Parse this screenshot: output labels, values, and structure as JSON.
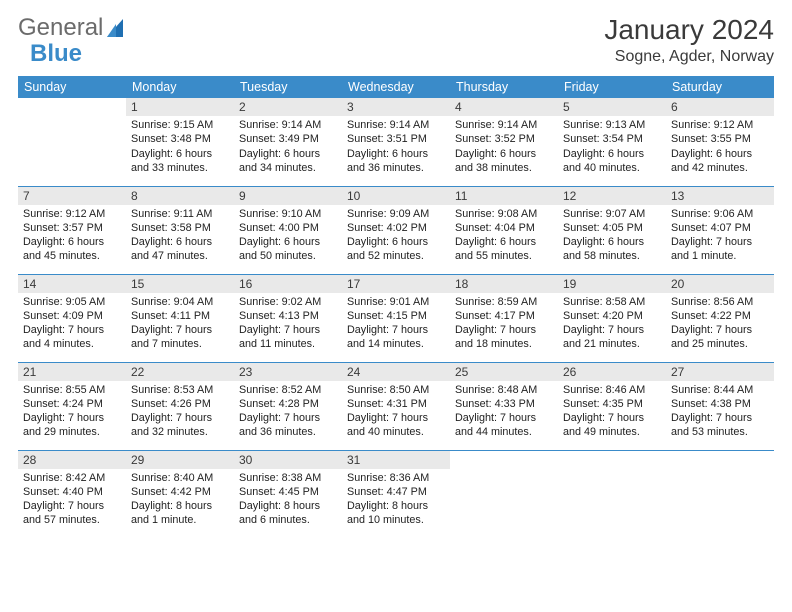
{
  "logo": {
    "word1": "General",
    "word2": "Blue"
  },
  "title": "January 2024",
  "location": "Sogne, Agder, Norway",
  "colors": {
    "accent": "#3a8bc9",
    "header_bg": "#3a8bc9",
    "header_fg": "#ffffff",
    "daynum_bg": "#e9e9e9",
    "rule": "#3a8bc9",
    "text": "#222222"
  },
  "columns": [
    "Sunday",
    "Monday",
    "Tuesday",
    "Wednesday",
    "Thursday",
    "Friday",
    "Saturday"
  ],
  "weeks": [
    [
      {
        "n": "",
        "sr": "",
        "ss": "",
        "dl": ""
      },
      {
        "n": "1",
        "sr": "Sunrise: 9:15 AM",
        "ss": "Sunset: 3:48 PM",
        "dl": "Daylight: 6 hours and 33 minutes."
      },
      {
        "n": "2",
        "sr": "Sunrise: 9:14 AM",
        "ss": "Sunset: 3:49 PM",
        "dl": "Daylight: 6 hours and 34 minutes."
      },
      {
        "n": "3",
        "sr": "Sunrise: 9:14 AM",
        "ss": "Sunset: 3:51 PM",
        "dl": "Daylight: 6 hours and 36 minutes."
      },
      {
        "n": "4",
        "sr": "Sunrise: 9:14 AM",
        "ss": "Sunset: 3:52 PM",
        "dl": "Daylight: 6 hours and 38 minutes."
      },
      {
        "n": "5",
        "sr": "Sunrise: 9:13 AM",
        "ss": "Sunset: 3:54 PM",
        "dl": "Daylight: 6 hours and 40 minutes."
      },
      {
        "n": "6",
        "sr": "Sunrise: 9:12 AM",
        "ss": "Sunset: 3:55 PM",
        "dl": "Daylight: 6 hours and 42 minutes."
      }
    ],
    [
      {
        "n": "7",
        "sr": "Sunrise: 9:12 AM",
        "ss": "Sunset: 3:57 PM",
        "dl": "Daylight: 6 hours and 45 minutes."
      },
      {
        "n": "8",
        "sr": "Sunrise: 9:11 AM",
        "ss": "Sunset: 3:58 PM",
        "dl": "Daylight: 6 hours and 47 minutes."
      },
      {
        "n": "9",
        "sr": "Sunrise: 9:10 AM",
        "ss": "Sunset: 4:00 PM",
        "dl": "Daylight: 6 hours and 50 minutes."
      },
      {
        "n": "10",
        "sr": "Sunrise: 9:09 AM",
        "ss": "Sunset: 4:02 PM",
        "dl": "Daylight: 6 hours and 52 minutes."
      },
      {
        "n": "11",
        "sr": "Sunrise: 9:08 AM",
        "ss": "Sunset: 4:04 PM",
        "dl": "Daylight: 6 hours and 55 minutes."
      },
      {
        "n": "12",
        "sr": "Sunrise: 9:07 AM",
        "ss": "Sunset: 4:05 PM",
        "dl": "Daylight: 6 hours and 58 minutes."
      },
      {
        "n": "13",
        "sr": "Sunrise: 9:06 AM",
        "ss": "Sunset: 4:07 PM",
        "dl": "Daylight: 7 hours and 1 minute."
      }
    ],
    [
      {
        "n": "14",
        "sr": "Sunrise: 9:05 AM",
        "ss": "Sunset: 4:09 PM",
        "dl": "Daylight: 7 hours and 4 minutes."
      },
      {
        "n": "15",
        "sr": "Sunrise: 9:04 AM",
        "ss": "Sunset: 4:11 PM",
        "dl": "Daylight: 7 hours and 7 minutes."
      },
      {
        "n": "16",
        "sr": "Sunrise: 9:02 AM",
        "ss": "Sunset: 4:13 PM",
        "dl": "Daylight: 7 hours and 11 minutes."
      },
      {
        "n": "17",
        "sr": "Sunrise: 9:01 AM",
        "ss": "Sunset: 4:15 PM",
        "dl": "Daylight: 7 hours and 14 minutes."
      },
      {
        "n": "18",
        "sr": "Sunrise: 8:59 AM",
        "ss": "Sunset: 4:17 PM",
        "dl": "Daylight: 7 hours and 18 minutes."
      },
      {
        "n": "19",
        "sr": "Sunrise: 8:58 AM",
        "ss": "Sunset: 4:20 PM",
        "dl": "Daylight: 7 hours and 21 minutes."
      },
      {
        "n": "20",
        "sr": "Sunrise: 8:56 AM",
        "ss": "Sunset: 4:22 PM",
        "dl": "Daylight: 7 hours and 25 minutes."
      }
    ],
    [
      {
        "n": "21",
        "sr": "Sunrise: 8:55 AM",
        "ss": "Sunset: 4:24 PM",
        "dl": "Daylight: 7 hours and 29 minutes."
      },
      {
        "n": "22",
        "sr": "Sunrise: 8:53 AM",
        "ss": "Sunset: 4:26 PM",
        "dl": "Daylight: 7 hours and 32 minutes."
      },
      {
        "n": "23",
        "sr": "Sunrise: 8:52 AM",
        "ss": "Sunset: 4:28 PM",
        "dl": "Daylight: 7 hours and 36 minutes."
      },
      {
        "n": "24",
        "sr": "Sunrise: 8:50 AM",
        "ss": "Sunset: 4:31 PM",
        "dl": "Daylight: 7 hours and 40 minutes."
      },
      {
        "n": "25",
        "sr": "Sunrise: 8:48 AM",
        "ss": "Sunset: 4:33 PM",
        "dl": "Daylight: 7 hours and 44 minutes."
      },
      {
        "n": "26",
        "sr": "Sunrise: 8:46 AM",
        "ss": "Sunset: 4:35 PM",
        "dl": "Daylight: 7 hours and 49 minutes."
      },
      {
        "n": "27",
        "sr": "Sunrise: 8:44 AM",
        "ss": "Sunset: 4:38 PM",
        "dl": "Daylight: 7 hours and 53 minutes."
      }
    ],
    [
      {
        "n": "28",
        "sr": "Sunrise: 8:42 AM",
        "ss": "Sunset: 4:40 PM",
        "dl": "Daylight: 7 hours and 57 minutes."
      },
      {
        "n": "29",
        "sr": "Sunrise: 8:40 AM",
        "ss": "Sunset: 4:42 PM",
        "dl": "Daylight: 8 hours and 1 minute."
      },
      {
        "n": "30",
        "sr": "Sunrise: 8:38 AM",
        "ss": "Sunset: 4:45 PM",
        "dl": "Daylight: 8 hours and 6 minutes."
      },
      {
        "n": "31",
        "sr": "Sunrise: 8:36 AM",
        "ss": "Sunset: 4:47 PM",
        "dl": "Daylight: 8 hours and 10 minutes."
      },
      {
        "n": "",
        "sr": "",
        "ss": "",
        "dl": ""
      },
      {
        "n": "",
        "sr": "",
        "ss": "",
        "dl": ""
      },
      {
        "n": "",
        "sr": "",
        "ss": "",
        "dl": ""
      }
    ]
  ]
}
